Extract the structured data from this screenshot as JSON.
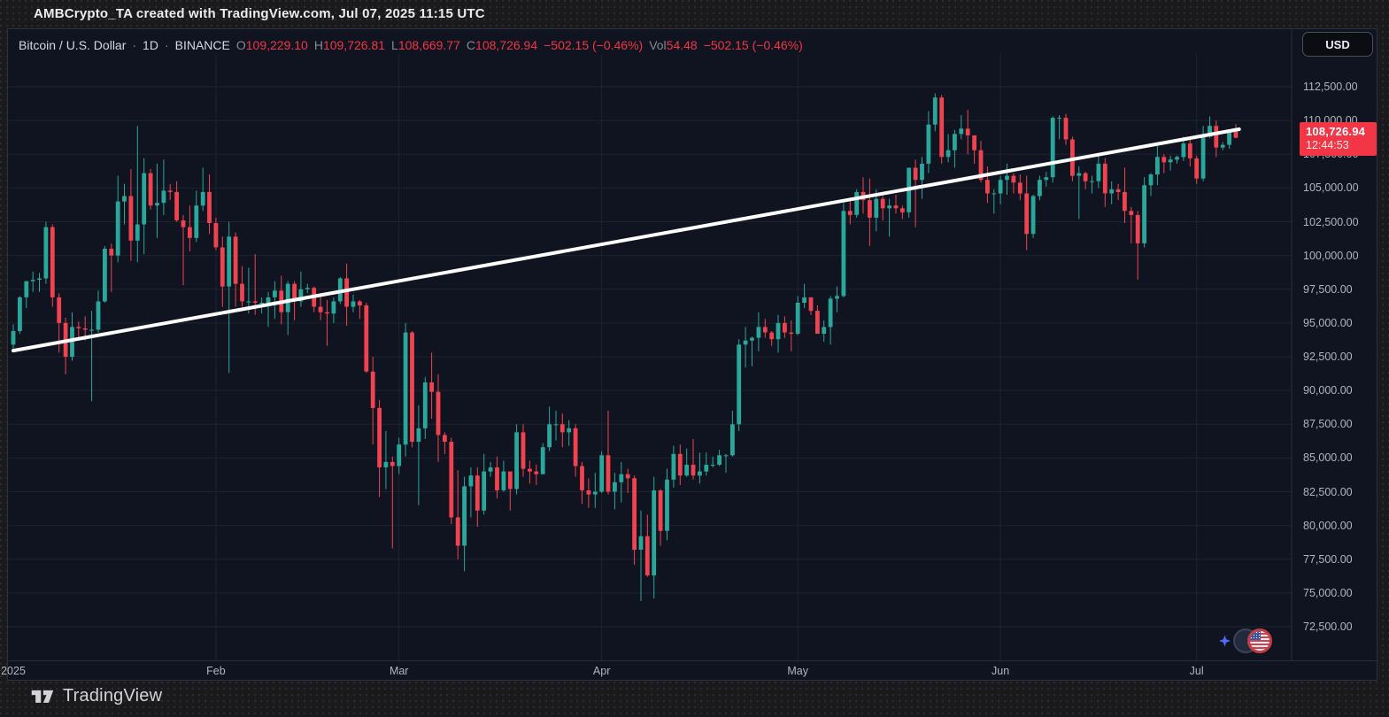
{
  "banner": {
    "text": "AMBCrypto_TA created with TradingView.com, Jul 07, 2025 11:15 UTC"
  },
  "watermark": {
    "label": "TradingView",
    "logo_icon": "tradingview-logo"
  },
  "toolbar": {
    "currency_button": "USD"
  },
  "legend": {
    "symbol": "Bitcoin / U.S. Dollar",
    "sep1": "·",
    "interval": "1D",
    "sep2": "·",
    "exchange": "BINANCE",
    "open_label": "O",
    "open": "109,229.10",
    "high_label": "H",
    "high": "109,726.81",
    "low_label": "L",
    "low": "108,669.77",
    "close_label": "C",
    "close": "108,726.94",
    "change": "−502.15 (−0.46%)",
    "volume_label": "Vol",
    "volume": "54.48",
    "volume_change": "−502.15 (−0.46%)"
  },
  "price_label": {
    "price": "108,726.94",
    "countdown": "12:44:53"
  },
  "symbol_icons": {
    "sparkle": "sparkle-icon",
    "base": "btc-coin-icon",
    "quote": "us-flag-icon"
  },
  "colors": {
    "up": "#2aa79b",
    "down": "#f1434f",
    "label_red": "#f23645",
    "trendline": "#ffffff",
    "chart_bg": "#0f1420",
    "frame_bg": "#1a1a1c",
    "grid": "#1d2330",
    "axis_text": "#b2b5be",
    "text": "#d5d8e0",
    "muted": "#87898f"
  },
  "chart_data": {
    "type": "candlestick",
    "title": "Bitcoin / U.S. Dollar · 1D · BINANCE",
    "legend_position": "top-left",
    "grid": true,
    "y_axis": {
      "side": "right",
      "min": 72500,
      "max": 112500,
      "tick_step": 2500
    },
    "x_axis": {
      "labels": [
        {
          "text": "2025",
          "day": 0
        },
        {
          "text": "Feb",
          "day": 31
        },
        {
          "text": "Mar",
          "day": 59
        },
        {
          "text": "Apr",
          "day": 90
        },
        {
          "text": "May",
          "day": 120
        },
        {
          "text": "Jun",
          "day": 151
        },
        {
          "text": "Jul",
          "day": 181
        }
      ]
    },
    "trendline": {
      "start_day": 0,
      "start_price": 92950,
      "end_day": 187.5,
      "end_price": 109350,
      "width": 4
    },
    "candles": [
      [
        "01-01",
        93400,
        94900,
        92900,
        94400
      ],
      [
        "01-02",
        94400,
        97000,
        94200,
        96900
      ],
      [
        "01-03",
        96900,
        98100,
        96100,
        98100
      ],
      [
        "01-04",
        98100,
        98800,
        97300,
        98200
      ],
      [
        "01-05",
        98200,
        98700,
        97300,
        98300
      ],
      [
        "01-06",
        98300,
        102500,
        97900,
        102100
      ],
      [
        "01-07",
        102100,
        102300,
        96200,
        96900
      ],
      [
        "01-08",
        96900,
        97200,
        92800,
        95000
      ],
      [
        "01-09",
        95000,
        95400,
        91200,
        92500
      ],
      [
        "01-10",
        92500,
        95800,
        92200,
        94700
      ],
      [
        "01-11",
        94700,
        95100,
        93800,
        94600
      ],
      [
        "01-12",
        94600,
        95500,
        93700,
        94500
      ],
      [
        "01-13",
        94500,
        95900,
        89200,
        94500
      ],
      [
        "01-14",
        94500,
        97400,
        94300,
        96600
      ],
      [
        "01-15",
        96600,
        100700,
        96500,
        100500
      ],
      [
        "01-16",
        100500,
        100900,
        97300,
        100000
      ],
      [
        "01-17",
        100000,
        105900,
        99500,
        104000
      ],
      [
        "01-18",
        104000,
        105300,
        102300,
        104400
      ],
      [
        "01-19",
        104400,
        106400,
        99600,
        101100
      ],
      [
        "01-20",
        101100,
        109600,
        99500,
        102300
      ],
      [
        "01-21",
        102300,
        107200,
        100100,
        106100
      ],
      [
        "01-22",
        106100,
        106400,
        103400,
        103700
      ],
      [
        "01-23",
        103700,
        106800,
        101300,
        103900
      ],
      [
        "01-24",
        103900,
        107100,
        103000,
        104800
      ],
      [
        "01-25",
        104800,
        105300,
        104100,
        104700
      ],
      [
        "01-26",
        104700,
        105500,
        102500,
        102600
      ],
      [
        "01-27",
        102600,
        103000,
        97800,
        102100
      ],
      [
        "01-28",
        102100,
        103700,
        100300,
        101300
      ],
      [
        "01-29",
        101300,
        104800,
        101000,
        103700
      ],
      [
        "01-30",
        103700,
        106500,
        103300,
        104700
      ],
      [
        "01-31",
        104700,
        106000,
        101600,
        102400
      ],
      [
        "02-01",
        102400,
        102800,
        100400,
        100600
      ],
      [
        "02-02",
        100600,
        101400,
        96200,
        97700
      ],
      [
        "02-03",
        97700,
        102500,
        91300,
        101400
      ],
      [
        "02-04",
        101400,
        101700,
        96200,
        97900
      ],
      [
        "02-05",
        97900,
        99200,
        96200,
        96600
      ],
      [
        "02-06",
        96600,
        99100,
        95700,
        96600
      ],
      [
        "02-07",
        96600,
        100100,
        95600,
        96500
      ],
      [
        "02-08",
        96500,
        96900,
        95700,
        96500
      ],
      [
        "02-09",
        96500,
        97300,
        94700,
        96900
      ],
      [
        "02-10",
        96900,
        98100,
        95300,
        97400
      ],
      [
        "02-11",
        97400,
        98500,
        94900,
        95800
      ],
      [
        "02-12",
        95800,
        98100,
        94100,
        97900
      ],
      [
        "02-13",
        97900,
        98100,
        95200,
        96600
      ],
      [
        "02-14",
        96600,
        98800,
        96200,
        97500
      ],
      [
        "02-15",
        97500,
        97900,
        97200,
        97600
      ],
      [
        "02-16",
        97600,
        97700,
        95800,
        96200
      ],
      [
        "02-17",
        96200,
        97000,
        95200,
        95800
      ],
      [
        "02-18",
        95800,
        96700,
        93300,
        95700
      ],
      [
        "02-19",
        95700,
        96900,
        95000,
        96600
      ],
      [
        "02-20",
        96600,
        98400,
        96400,
        98300
      ],
      [
        "02-21",
        98300,
        99400,
        94800,
        96200
      ],
      [
        "02-22",
        96200,
        97100,
        95800,
        96600
      ],
      [
        "02-23",
        96600,
        96700,
        95300,
        96300
      ],
      [
        "02-24",
        96300,
        96500,
        91300,
        91400
      ],
      [
        "02-25",
        91400,
        92500,
        86000,
        88700
      ],
      [
        "02-26",
        88700,
        89300,
        82100,
        84300
      ],
      [
        "02-27",
        84300,
        87000,
        82700,
        84700
      ],
      [
        "02-28",
        84700,
        85100,
        78300,
        84400
      ],
      [
        "03-01",
        84400,
        86500,
        83800,
        86000
      ],
      [
        "03-02",
        86000,
        95000,
        85100,
        94300
      ],
      [
        "03-03",
        94300,
        94400,
        85800,
        86200
      ],
      [
        "03-04",
        86200,
        88900,
        81500,
        87200
      ],
      [
        "03-05",
        87200,
        91000,
        86400,
        90600
      ],
      [
        "03-06",
        90600,
        92800,
        87900,
        89900
      ],
      [
        "03-07",
        89900,
        91200,
        84700,
        86700
      ],
      [
        "03-08",
        86700,
        86900,
        85300,
        86200
      ],
      [
        "03-09",
        86200,
        86500,
        80100,
        80600
      ],
      [
        "03-10",
        80600,
        84100,
        77500,
        78500
      ],
      [
        "03-11",
        78500,
        83600,
        76600,
        82900
      ],
      [
        "03-12",
        82900,
        84300,
        80600,
        83700
      ],
      [
        "03-13",
        83700,
        84300,
        79900,
        81100
      ],
      [
        "03-14",
        81100,
        85300,
        80800,
        84000
      ],
      [
        "03-15",
        84000,
        84700,
        83600,
        84300
      ],
      [
        "03-16",
        84300,
        85100,
        82000,
        82600
      ],
      [
        "03-17",
        82600,
        84800,
        82500,
        84000
      ],
      [
        "03-18",
        84000,
        84000,
        81100,
        82700
      ],
      [
        "03-19",
        82700,
        87500,
        82300,
        86900
      ],
      [
        "03-20",
        86900,
        87500,
        83600,
        84200
      ],
      [
        "03-21",
        84200,
        84800,
        83100,
        84000
      ],
      [
        "03-22",
        84000,
        84500,
        83000,
        83800
      ],
      [
        "03-23",
        83800,
        86100,
        83800,
        85800
      ],
      [
        "03-24",
        85800,
        88800,
        85500,
        87500
      ],
      [
        "03-25",
        87500,
        88500,
        86300,
        87500
      ],
      [
        "03-26",
        87500,
        88300,
        85800,
        86900
      ],
      [
        "03-27",
        86900,
        87800,
        85900,
        87200
      ],
      [
        "03-28",
        87200,
        87500,
        83600,
        84400
      ],
      [
        "03-29",
        84400,
        84700,
        81600,
        82600
      ],
      [
        "03-30",
        82600,
        83500,
        81300,
        82300
      ],
      [
        "03-31",
        82300,
        83900,
        81300,
        82500
      ],
      [
        "04-01",
        82500,
        85500,
        82400,
        85200
      ],
      [
        "04-02",
        85200,
        88500,
        82300,
        82500
      ],
      [
        "04-03",
        82500,
        83900,
        81200,
        83200
      ],
      [
        "04-04",
        83200,
        84700,
        81700,
        83800
      ],
      [
        "04-05",
        83800,
        84200,
        82400,
        83500
      ],
      [
        "04-06",
        83500,
        83700,
        77100,
        78200
      ],
      [
        "04-07",
        78200,
        81100,
        74400,
        79200
      ],
      [
        "04-08",
        79200,
        80800,
        76200,
        76300
      ],
      [
        "04-09",
        76300,
        83600,
        74600,
        82600
      ],
      [
        "04-10",
        82600,
        82700,
        78500,
        79600
      ],
      [
        "04-11",
        79600,
        84200,
        78900,
        83400
      ],
      [
        "04-12",
        83400,
        85900,
        82800,
        85300
      ],
      [
        "04-13",
        85300,
        86000,
        83000,
        83700
      ],
      [
        "04-14",
        83700,
        85700,
        83600,
        84500
      ],
      [
        "04-15",
        84500,
        86400,
        83400,
        83700
      ],
      [
        "04-16",
        83700,
        85400,
        83100,
        84000
      ],
      [
        "04-17",
        84000,
        85400,
        83700,
        84500
      ],
      [
        "04-18",
        84500,
        85100,
        84300,
        84500
      ],
      [
        "04-19",
        84500,
        85600,
        84400,
        85200
      ],
      [
        "04-20",
        85200,
        85300,
        83900,
        85200
      ],
      [
        "04-21",
        85200,
        88500,
        85100,
        87500
      ],
      [
        "04-22",
        87500,
        93800,
        87000,
        93400
      ],
      [
        "04-23",
        93400,
        94700,
        91700,
        93700
      ],
      [
        "04-24",
        93700,
        94000,
        91800,
        93900
      ],
      [
        "04-25",
        93900,
        95800,
        92900,
        94700
      ],
      [
        "04-26",
        94700,
        95300,
        93900,
        94300
      ],
      [
        "04-27",
        94300,
        94400,
        93300,
        93800
      ],
      [
        "04-28",
        93800,
        95600,
        92800,
        95000
      ],
      [
        "04-29",
        95000,
        95500,
        93900,
        94300
      ],
      [
        "04-30",
        94300,
        95200,
        92900,
        94200
      ],
      [
        "05-01",
        94200,
        97000,
        94100,
        96500
      ],
      [
        "05-02",
        96500,
        97900,
        96100,
        96900
      ],
      [
        "05-03",
        96900,
        96900,
        95600,
        95900
      ],
      [
        "05-04",
        95900,
        96300,
        94200,
        94200
      ],
      [
        "05-05",
        94200,
        95200,
        93600,
        94700
      ],
      [
        "05-06",
        94700,
        97000,
        93400,
        96800
      ],
      [
        "05-07",
        96800,
        97700,
        95800,
        97000
      ],
      [
        "05-08",
        97000,
        103900,
        96900,
        103300
      ],
      [
        "05-09",
        103300,
        104300,
        102300,
        103000
      ],
      [
        "05-10",
        103000,
        104900,
        102800,
        104700
      ],
      [
        "05-11",
        104700,
        105800,
        103100,
        104100
      ],
      [
        "05-12",
        104100,
        105700,
        100700,
        102800
      ],
      [
        "05-13",
        102800,
        104900,
        101800,
        104200
      ],
      [
        "05-14",
        104200,
        104400,
        102600,
        103500
      ],
      [
        "05-15",
        103500,
        104200,
        101400,
        103700
      ],
      [
        "05-16",
        103700,
        104500,
        103100,
        103500
      ],
      [
        "05-17",
        103500,
        103700,
        102700,
        103200
      ],
      [
        "05-18",
        103200,
        106500,
        102800,
        106500
      ],
      [
        "05-19",
        106500,
        107100,
        102100,
        105600
      ],
      [
        "05-20",
        105600,
        107300,
        104200,
        106800
      ],
      [
        "05-21",
        106800,
        110700,
        106100,
        109700
      ],
      [
        "05-22",
        109700,
        112000,
        109200,
        111700
      ],
      [
        "05-23",
        111700,
        111900,
        106800,
        107300
      ],
      [
        "05-24",
        107300,
        109000,
        106900,
        107800
      ],
      [
        "05-25",
        107800,
        109300,
        106500,
        109000
      ],
      [
        "05-26",
        109000,
        110400,
        108600,
        109400
      ],
      [
        "05-27",
        109400,
        110800,
        107500,
        108900
      ],
      [
        "05-28",
        108900,
        108900,
        106800,
        107800
      ],
      [
        "05-29",
        107800,
        108500,
        105400,
        105600
      ],
      [
        "05-30",
        105600,
        106600,
        103900,
        104600
      ],
      [
        "05-31",
        104600,
        104900,
        103100,
        104600
      ],
      [
        "06-01",
        104600,
        105900,
        103800,
        105600
      ],
      [
        "06-02",
        105600,
        106800,
        104500,
        105900
      ],
      [
        "06-03",
        105900,
        106100,
        104600,
        105400
      ],
      [
        "06-04",
        105400,
        106000,
        104100,
        104600
      ],
      [
        "06-05",
        104600,
        105900,
        100400,
        101600
      ],
      [
        "06-06",
        101600,
        104500,
        101300,
        104400
      ],
      [
        "06-07",
        104400,
        105900,
        104100,
        105600
      ],
      [
        "06-08",
        105600,
        106200,
        105100,
        105800
      ],
      [
        "06-09",
        105800,
        110300,
        105400,
        110200
      ],
      [
        "06-10",
        110200,
        110400,
        108600,
        110200
      ],
      [
        "06-11",
        110200,
        110500,
        108200,
        108600
      ],
      [
        "06-12",
        108600,
        108800,
        105500,
        105900
      ],
      [
        "06-13",
        105900,
        106600,
        102700,
        106100
      ],
      [
        "06-14",
        106100,
        106200,
        104900,
        105500
      ],
      [
        "06-15",
        105500,
        105900,
        104600,
        105500
      ],
      [
        "06-16",
        105500,
        107500,
        105000,
        106800
      ],
      [
        "06-17",
        106800,
        107200,
        103600,
        104600
      ],
      [
        "06-18",
        104600,
        105500,
        103800,
        104900
      ],
      [
        "06-19",
        104900,
        105300,
        104100,
        104700
      ],
      [
        "06-20",
        104700,
        106500,
        102400,
        103300
      ],
      [
        "06-21",
        103300,
        103600,
        100900,
        103000
      ],
      [
        "06-22",
        103000,
        103300,
        98200,
        100900
      ],
      [
        "06-23",
        100900,
        105800,
        100600,
        105200
      ],
      [
        "06-24",
        105200,
        106100,
        104400,
        106000
      ],
      [
        "06-25",
        106000,
        108100,
        105200,
        107300
      ],
      [
        "06-26",
        107300,
        107500,
        106100,
        106900
      ],
      [
        "06-27",
        106900,
        107400,
        106300,
        107100
      ],
      [
        "06-28",
        107100,
        107400,
        106800,
        107300
      ],
      [
        "06-29",
        107300,
        108800,
        107000,
        108300
      ],
      [
        "06-30",
        108300,
        108800,
        106600,
        107200
      ],
      [
        "07-01",
        107200,
        107400,
        105300,
        105700
      ],
      [
        "07-02",
        105700,
        109600,
        105500,
        108800
      ],
      [
        "07-03",
        108800,
        110300,
        108700,
        109600
      ],
      [
        "07-04",
        109600,
        110000,
        107300,
        108000
      ],
      [
        "07-05",
        108000,
        108400,
        107800,
        108200
      ],
      [
        "07-06",
        108200,
        109300,
        107900,
        109200
      ],
      [
        "07-07",
        109229.1,
        109726.81,
        108669.77,
        108726.94
      ]
    ]
  }
}
